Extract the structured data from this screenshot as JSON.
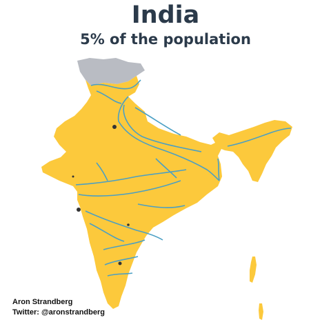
{
  "header": {
    "title": "India",
    "subtitle": "5% of the population"
  },
  "credits": {
    "author": "Aron Strandberg",
    "twitter": "Twitter: @aronstrandberg"
  },
  "map": {
    "colors": {
      "highlighted_land": "#fcc93c",
      "greyed_land": "#b9bcc3",
      "rivers": "#4a9fc4",
      "cities": "#333333"
    }
  }
}
